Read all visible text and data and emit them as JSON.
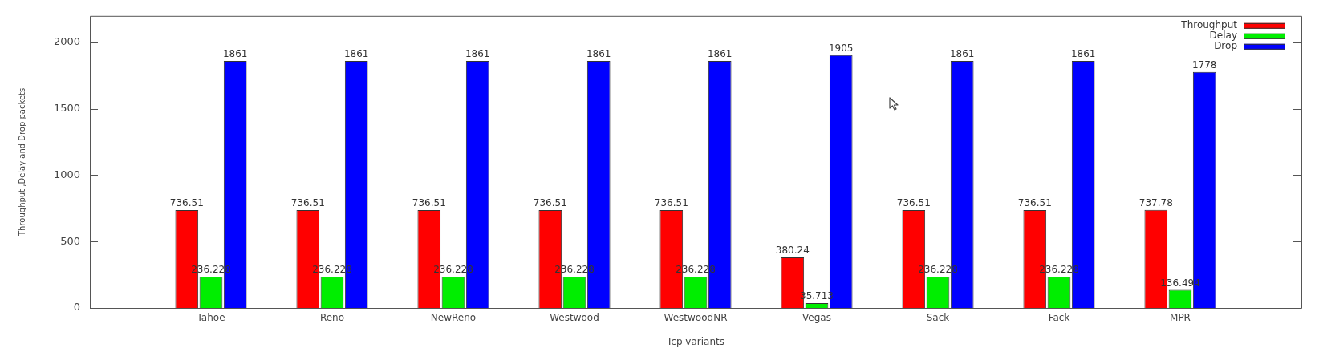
{
  "chart_data": {
    "type": "bar",
    "xlabel": "Tcp variants",
    "ylabel": "Throughput ,Delay and Drop packets",
    "categories": [
      "Tahoe",
      "Reno",
      "NewReno",
      "Westwood",
      "WestwoodNR",
      "Vegas",
      "Sack",
      "Fack",
      "MPR"
    ],
    "series": [
      {
        "name": "Throughput",
        "color": "#ff0000",
        "values": [
          736.51,
          736.51,
          736.51,
          736.51,
          736.51,
          380.24,
          736.51,
          736.51,
          737.78
        ]
      },
      {
        "name": "Delay",
        "color": "#00ee00",
        "values": [
          236.228,
          236.228,
          236.228,
          236.228,
          236.228,
          35.713,
          236.228,
          236.228,
          136.494
        ]
      },
      {
        "name": "Drop",
        "color": "#0000ff",
        "values": [
          1861,
          1861,
          1861,
          1861,
          1861,
          1905,
          1861,
          1861,
          1778
        ]
      }
    ],
    "ylim": [
      0,
      2200
    ],
    "yticks": [
      0,
      500,
      1000,
      1500,
      2000
    ],
    "data_labels": true,
    "legend": "top right"
  }
}
